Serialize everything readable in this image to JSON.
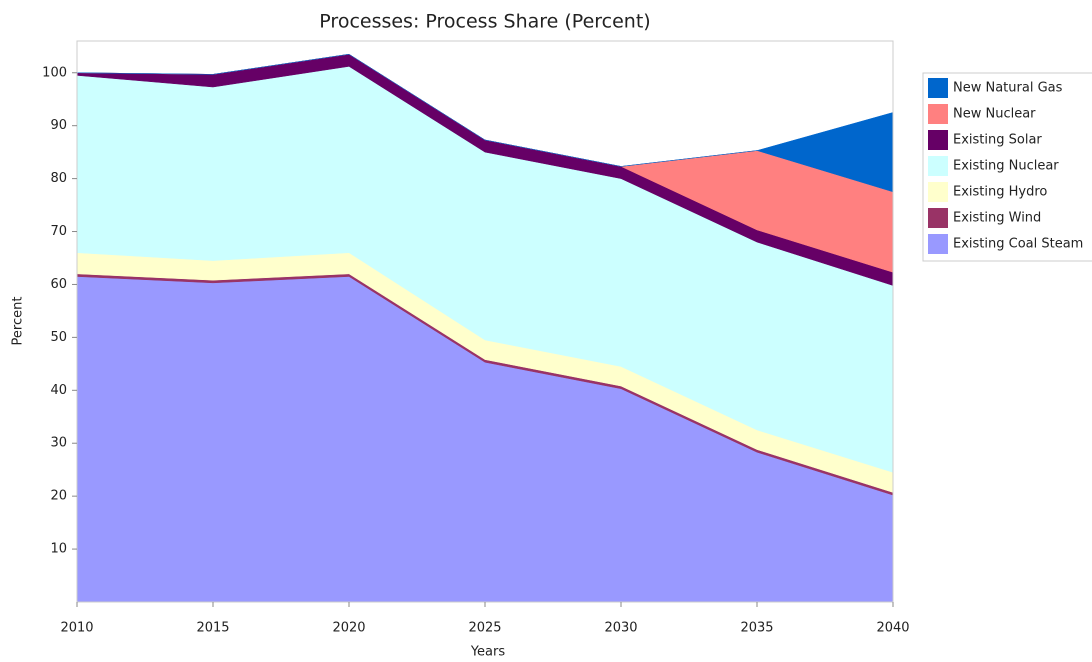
{
  "chart_data": {
    "type": "stacked_area",
    "title": "Processes: Process Share (Percent)",
    "xlabel": "Years",
    "ylabel": "Percent",
    "x": [
      2010,
      2015,
      2020,
      2025,
      2030,
      2035,
      2040
    ],
    "series": [
      {
        "name": "Existing Coal Steam",
        "color": "#9999ff",
        "values": [
          61.5,
          60.3,
          61.5,
          45.3,
          40.3,
          28.3,
          20.2
        ]
      },
      {
        "name": "Existing Wind",
        "color": "#993366",
        "values": [
          0.5,
          0.5,
          0.5,
          0.5,
          0.5,
          0.5,
          0.5
        ]
      },
      {
        "name": "Existing Hydro",
        "color": "#ffffcc",
        "values": [
          4,
          3.7,
          4,
          3.7,
          3.7,
          3.7,
          3.8
        ]
      },
      {
        "name": "Existing Nuclear",
        "color": "#ccffff",
        "values": [
          33.5,
          32.8,
          35.2,
          35.5,
          35.5,
          35.5,
          35.3
        ]
      },
      {
        "name": "Existing Solar",
        "color": "#660066",
        "values": [
          0.5,
          2.4,
          2.3,
          2.3,
          2.3,
          2.3,
          2.5
        ]
      },
      {
        "name": "New Nuclear",
        "color": "#ff8080",
        "values": [
          0,
          0,
          0,
          0,
          0,
          15,
          15.2
        ]
      },
      {
        "name": "New Natural Gas",
        "color": "#0066cc",
        "values": [
          0,
          0,
          0,
          0,
          0,
          0,
          15
        ]
      }
    ],
    "xlim": [
      2010,
      2040
    ],
    "xticks": [
      2010,
      2015,
      2020,
      2025,
      2030,
      2035,
      2040
    ],
    "ylim": [
      0,
      106
    ],
    "yticks": [
      10,
      20,
      30,
      40,
      50,
      60,
      70,
      80,
      90,
      100
    ]
  }
}
